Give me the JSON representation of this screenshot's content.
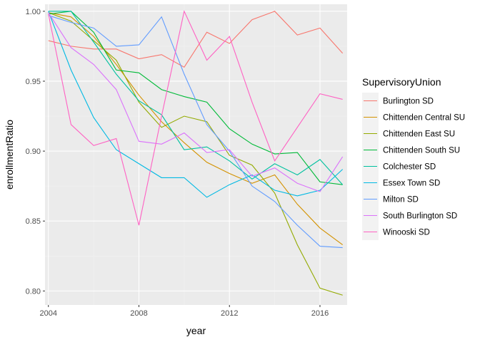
{
  "chart_data": {
    "type": "line",
    "xlabel": "year",
    "ylabel": "enrollmentRatio",
    "legend_title": "SupervisoryUnion",
    "legend_position": "right",
    "grid": true,
    "xlim": [
      2003.85,
      2017.2
    ],
    "ylim": [
      0.79,
      1.005
    ],
    "x_ticks": [
      2004,
      2008,
      2012,
      2016
    ],
    "x_tick_labels": [
      "2004",
      "2008",
      "2012",
      "2016"
    ],
    "y_ticks": [
      0.8,
      0.85,
      0.9,
      0.95,
      1.0
    ],
    "y_tick_labels": [
      "0.80",
      "0.85",
      "0.90",
      "0.95",
      "1.00"
    ],
    "x": [
      2004,
      2005,
      2006,
      2007,
      2008,
      2009,
      2010,
      2011,
      2012,
      2013,
      2014,
      2015,
      2016,
      2017
    ],
    "series": [
      {
        "name": "Burlington SD",
        "color": "#F8766D",
        "values": [
          0.979,
          0.975,
          0.973,
          0.973,
          0.966,
          0.969,
          0.96,
          0.985,
          0.977,
          0.994,
          1.0,
          0.983,
          0.988,
          0.97
        ]
      },
      {
        "name": "Chittenden Central SU",
        "color": "#D39200",
        "values": [
          0.999,
          0.996,
          0.982,
          0.962,
          0.94,
          0.921,
          0.906,
          0.892,
          0.884,
          0.877,
          0.883,
          0.862,
          0.845,
          0.833
        ]
      },
      {
        "name": "Chittenden East SU",
        "color": "#93AA00",
        "values": [
          0.999,
          0.993,
          0.979,
          0.965,
          0.935,
          0.917,
          0.925,
          0.921,
          0.897,
          0.89,
          0.87,
          0.833,
          0.802,
          0.797
        ]
      },
      {
        "name": "Chittenden South SU",
        "color": "#00BA38",
        "values": [
          0.998,
          1.0,
          0.985,
          0.958,
          0.956,
          0.944,
          0.939,
          0.935,
          0.916,
          0.905,
          0.898,
          0.899,
          0.878,
          0.876
        ]
      },
      {
        "name": "Colchester SD",
        "color": "#00C19F",
        "values": [
          1.0,
          1.0,
          0.978,
          0.955,
          0.936,
          0.926,
          0.901,
          0.903,
          0.893,
          0.88,
          0.891,
          0.883,
          0.894,
          0.876
        ]
      },
      {
        "name": "Essex Town SD",
        "color": "#00B9E3",
        "values": [
          1.0,
          0.958,
          0.924,
          0.901,
          0.891,
          0.881,
          0.881,
          0.867,
          0.876,
          0.883,
          0.872,
          0.868,
          0.872,
          0.887
        ]
      },
      {
        "name": "Milton SD",
        "color": "#619CFF",
        "values": [
          0.997,
          0.992,
          0.988,
          0.975,
          0.976,
          0.996,
          0.955,
          0.919,
          0.9,
          0.875,
          0.864,
          0.847,
          0.832,
          0.831
        ]
      },
      {
        "name": "South Burlington SD",
        "color": "#DB72FB",
        "values": [
          0.999,
          0.974,
          0.962,
          0.944,
          0.907,
          0.905,
          0.913,
          0.899,
          0.901,
          0.882,
          0.888,
          0.877,
          0.871,
          0.896
        ]
      },
      {
        "name": "Winooski SD",
        "color": "#FF61C3",
        "values": [
          0.998,
          0.919,
          0.904,
          0.909,
          0.847,
          0.925,
          1.0,
          0.965,
          0.982,
          0.935,
          0.893,
          0.917,
          0.941,
          0.937
        ]
      }
    ]
  },
  "style": {
    "panel_background": "#EBEBEB",
    "grid_major": "#FFFFFF",
    "grid_minor": "#F2F2F2"
  }
}
